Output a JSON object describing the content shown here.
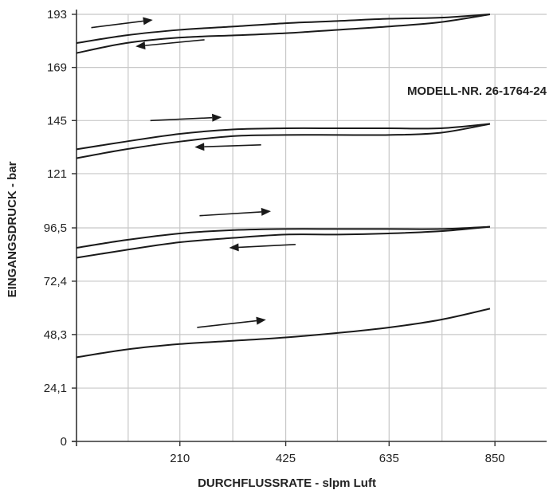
{
  "chart_data": {
    "type": "line",
    "title": "",
    "xlabel": "DURCHFLUSSRATE - slpm Luft",
    "ylabel": "EINGANGSDRUCK - bar",
    "annotation": "MODELL-NR. 26-1764-24",
    "xlim": [
      0,
      955
    ],
    "ylim": [
      0,
      193
    ],
    "x_ticks": [
      {
        "value": 210,
        "label": "210"
      },
      {
        "value": 425,
        "label": "425"
      },
      {
        "value": 635,
        "label": "635"
      },
      {
        "value": 850,
        "label": "850"
      }
    ],
    "y_ticks": [
      {
        "value": 0,
        "label": "0"
      },
      {
        "value": 24.1,
        "label": "24,1"
      },
      {
        "value": 48.3,
        "label": "48,3"
      },
      {
        "value": 72.4,
        "label": "72,4"
      },
      {
        "value": 96.5,
        "label": "96,5"
      },
      {
        "value": 121,
        "label": "121"
      },
      {
        "value": 145,
        "label": "145"
      },
      {
        "value": 169,
        "label": "169"
      },
      {
        "value": 193,
        "label": "193"
      }
    ],
    "grid": true,
    "series": [
      {
        "x": [
          0,
          100,
          210,
          320,
          425,
          530,
          635,
          740,
          840
        ],
        "y": [
          180,
          183.5,
          186,
          187.5,
          189,
          190,
          191,
          191.5,
          193
        ]
      },
      {
        "x": [
          0,
          100,
          210,
          320,
          425,
          530,
          635,
          740,
          840
        ],
        "y": [
          175.5,
          180,
          182.5,
          183.5,
          184.5,
          186,
          187.5,
          189.5,
          193
        ]
      },
      {
        "x": [
          0,
          100,
          210,
          320,
          425,
          530,
          635,
          740,
          840
        ],
        "y": [
          132,
          135.5,
          139,
          141,
          141.5,
          141.5,
          141.5,
          141.5,
          143.5
        ]
      },
      {
        "x": [
          0,
          100,
          210,
          320,
          425,
          530,
          635,
          740,
          840
        ],
        "y": [
          128,
          132,
          135.5,
          138,
          138.5,
          138.5,
          138.5,
          139.5,
          143.5
        ]
      },
      {
        "x": [
          0,
          100,
          210,
          320,
          425,
          530,
          635,
          740,
          840
        ],
        "y": [
          87.5,
          91,
          94,
          95.5,
          96,
          96,
          96,
          96,
          97
        ]
      },
      {
        "x": [
          0,
          100,
          210,
          320,
          425,
          530,
          635,
          740,
          840
        ],
        "y": [
          83,
          86.5,
          90,
          92,
          93.5,
          93.5,
          94,
          95,
          97
        ]
      },
      {
        "x": [
          0,
          100,
          210,
          320,
          425,
          530,
          635,
          740,
          840
        ],
        "y": [
          38,
          41.5,
          44,
          45.5,
          47,
          49,
          51.5,
          55,
          60
        ]
      }
    ],
    "direction_arrows": [
      {
        "x1": 30,
        "y1": 187,
        "x2": 155,
        "y2": 190.5
      },
      {
        "x1": 260,
        "y1": 181.5,
        "x2": 120,
        "y2": 178.5
      },
      {
        "x1": 150,
        "y1": 145,
        "x2": 295,
        "y2": 146.5
      },
      {
        "x1": 375,
        "y1": 134,
        "x2": 240,
        "y2": 133
      },
      {
        "x1": 250,
        "y1": 102,
        "x2": 395,
        "y2": 104
      },
      {
        "x1": 445,
        "y1": 89,
        "x2": 310,
        "y2": 87.5
      },
      {
        "x1": 245,
        "y1": 51.5,
        "x2": 385,
        "y2": 55
      }
    ]
  }
}
